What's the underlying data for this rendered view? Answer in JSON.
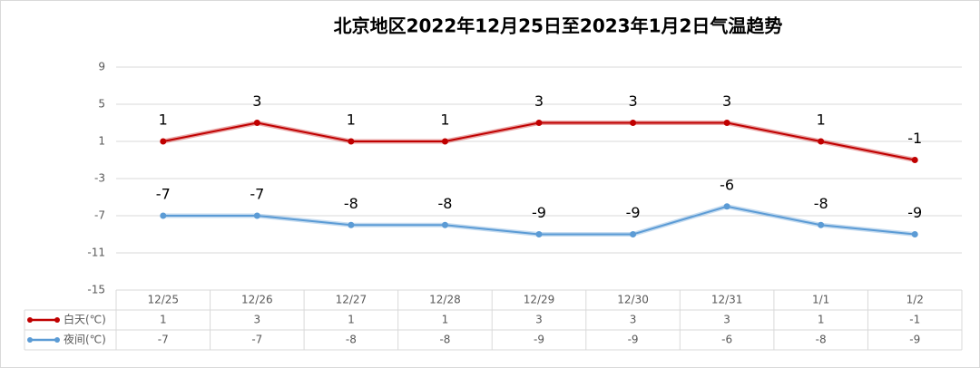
{
  "chart_data": {
    "type": "line",
    "title": "北京地区2022年12月25日至2023年1月2日气温趋势",
    "categories": [
      "12/25",
      "12/26",
      "12/27",
      "12/28",
      "12/29",
      "12/30",
      "12/31",
      "1/1",
      "1/2"
    ],
    "series": [
      {
        "name": "白天(℃)",
        "color": "#c00000",
        "values": [
          1,
          3,
          1,
          1,
          3,
          3,
          3,
          1,
          -1
        ]
      },
      {
        "name": "夜间(℃)",
        "color": "#5b9bd5",
        "values": [
          -7,
          -7,
          -8,
          -8,
          -9,
          -9,
          -6,
          -8,
          -9
        ]
      }
    ],
    "ylim": [
      -15,
      9
    ],
    "yticks": [
      -15,
      -11,
      -7,
      -3,
      1,
      5,
      9
    ],
    "grid": true,
    "data_table": true
  }
}
